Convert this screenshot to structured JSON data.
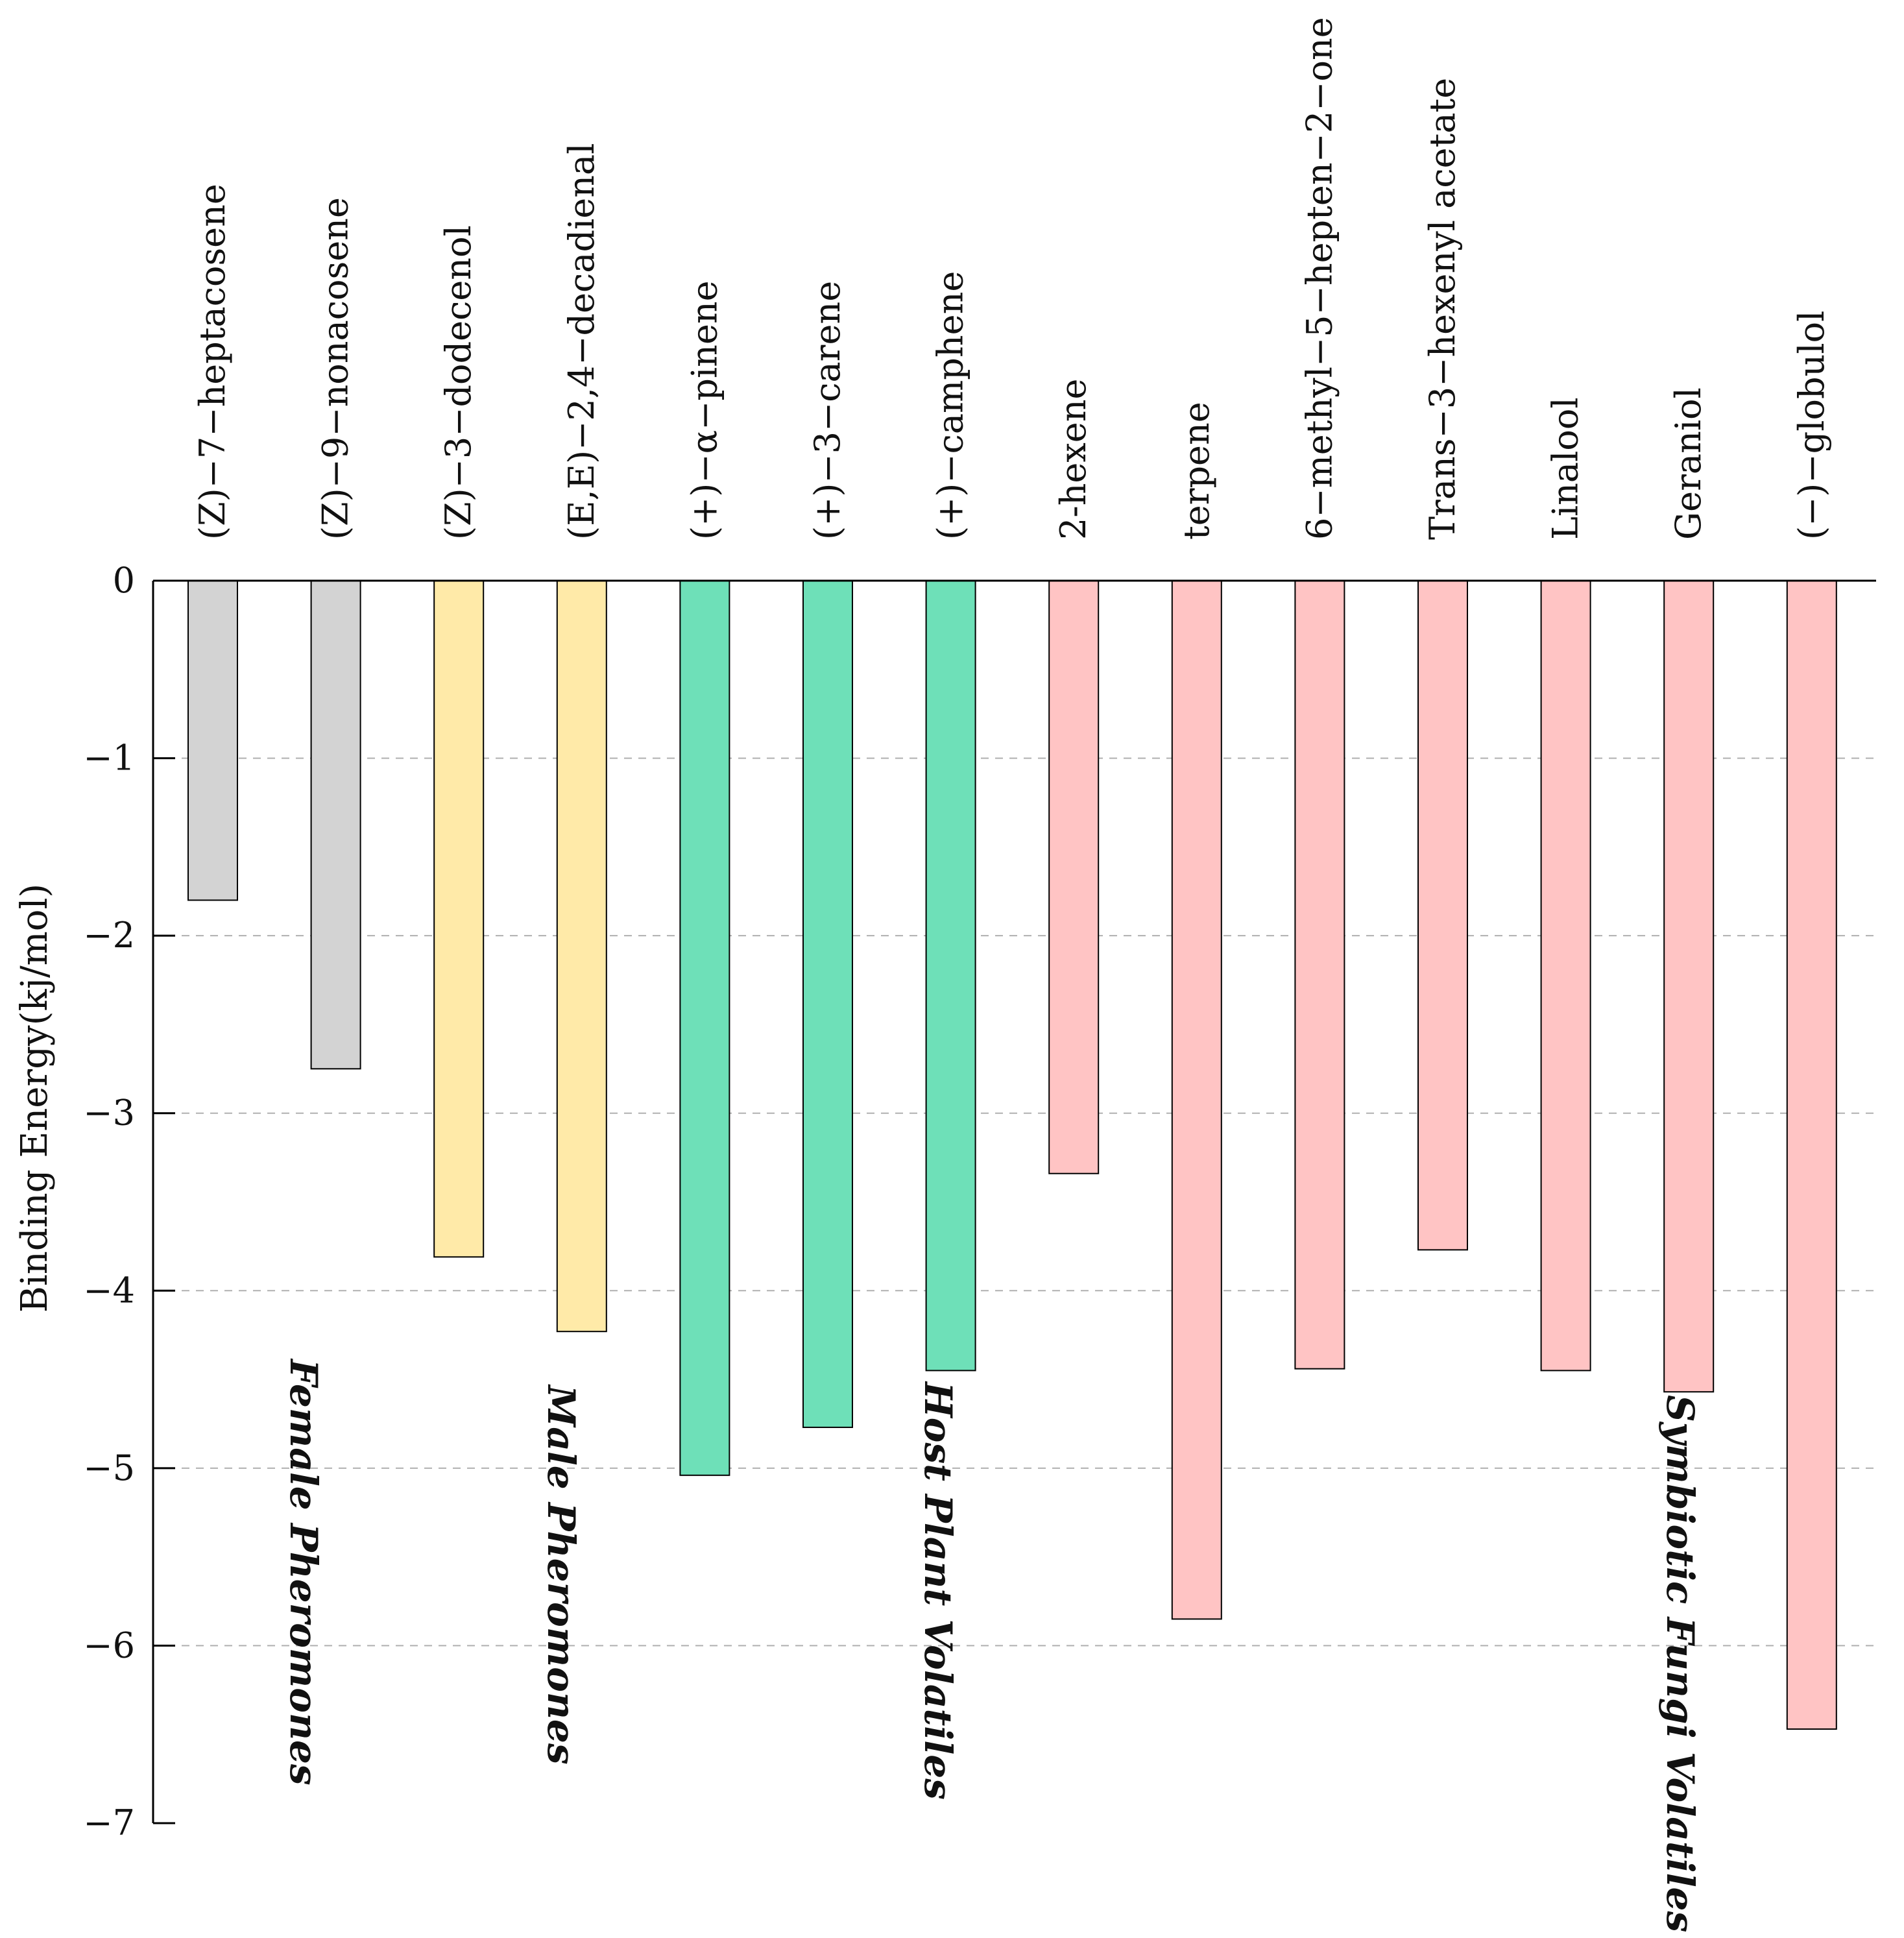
{
  "chart_data": {
    "type": "bar",
    "title": "",
    "xlabel": "",
    "ylabel": "Binding Energy(kj/mol)",
    "ylim": [
      -7,
      0
    ],
    "yticks": [
      0,
      -1,
      -2,
      -3,
      -4,
      -5,
      -6,
      -7
    ],
    "ytick_labels": [
      "0",
      "−1",
      "−2",
      "−3",
      "−4",
      "−5",
      "−6",
      "−7"
    ],
    "grid": true,
    "categories": [
      "(Z)−7−heptacosene",
      "(Z)−9−nonacosene",
      "(Z)−3−dodecenol",
      "(E,E)−2,4−decadienal",
      "(+)−α−pinene",
      "(+)−3−carene",
      "(+)−camphene",
      "2-hexene",
      "terpene",
      "6−methyl−5−hepten−2−one",
      "Trans−3−hexenyl acetate",
      "Linalool",
      "Geraniol",
      "(−)−globulol"
    ],
    "values": [
      -1.8,
      -2.75,
      -3.81,
      -4.23,
      -5.04,
      -4.77,
      -4.45,
      -3.34,
      -5.85,
      -4.44,
      -3.77,
      -4.45,
      -4.57,
      -6.47
    ],
    "groups": [
      {
        "name": "Female Pheromones",
        "color": "#d3d3d3",
        "indices": [
          0,
          1
        ]
      },
      {
        "name": "Male Pheromones",
        "color": "#ffeaa8",
        "indices": [
          2,
          3
        ]
      },
      {
        "name": "Host Plant Volatiles",
        "color": "#6ee0b8",
        "indices": [
          4,
          5,
          6
        ]
      },
      {
        "name": "Symbiotic Fungi Volatiles",
        "color": "#ffc4c4",
        "indices": [
          7,
          8,
          9,
          10,
          11,
          12,
          13
        ]
      }
    ]
  }
}
